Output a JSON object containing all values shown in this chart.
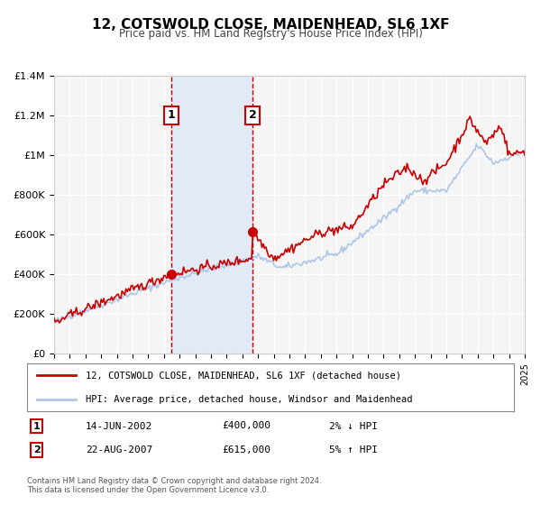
{
  "title": "12, COTSWOLD CLOSE, MAIDENHEAD, SL6 1XF",
  "subtitle": "Price paid vs. HM Land Registry's House Price Index (HPI)",
  "ylabel": "",
  "background_color": "#ffffff",
  "plot_bg_color": "#f5f5f5",
  "grid_color": "#ffffff",
  "hpi_color": "#aec6e8",
  "price_color": "#cc0000",
  "sale1_date": 2002.45,
  "sale1_price": 400000,
  "sale1_label": "1",
  "sale2_date": 2007.64,
  "sale2_price": 615000,
  "sale2_label": "2",
  "shade_start": 2002.45,
  "shade_end": 2007.64,
  "xmin": 1995,
  "xmax": 2025,
  "ymin": 0,
  "ymax": 1400000,
  "legend_line1": "12, COTSWOLD CLOSE, MAIDENHEAD, SL6 1XF (detached house)",
  "legend_line2": "HPI: Average price, detached house, Windsor and Maidenhead",
  "table_row1_num": "1",
  "table_row1_date": "14-JUN-2002",
  "table_row1_price": "£400,000",
  "table_row1_hpi": "2% ↓ HPI",
  "table_row2_num": "2",
  "table_row2_date": "22-AUG-2007",
  "table_row2_price": "£615,000",
  "table_row2_hpi": "5% ↑ HPI",
  "footer1": "Contains HM Land Registry data © Crown copyright and database right 2024.",
  "footer2": "This data is licensed under the Open Government Licence v3.0."
}
